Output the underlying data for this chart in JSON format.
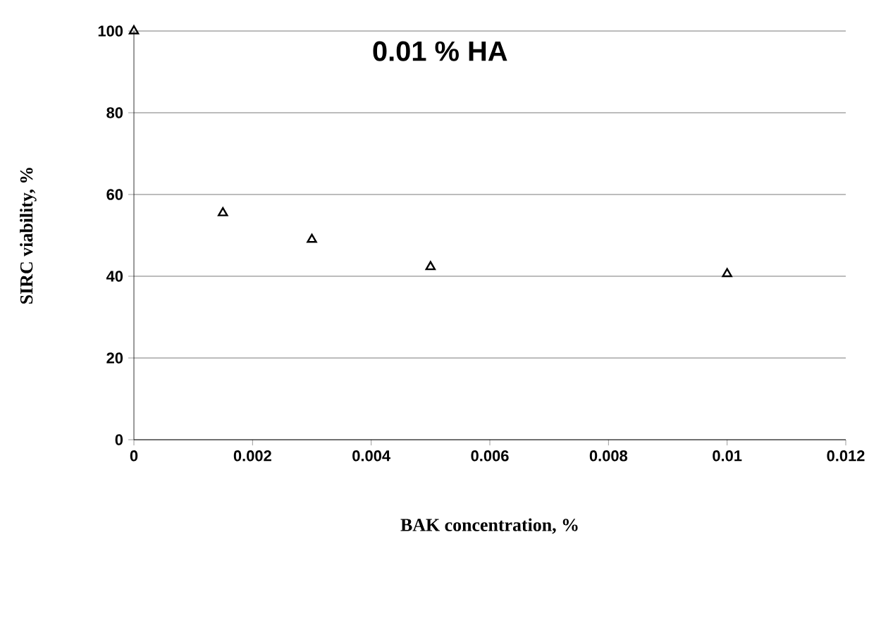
{
  "chart_data": {
    "type": "scatter",
    "title": "0.01 % HA",
    "xlabel": "BAK concentration, %",
    "ylabel": "SIRC viability, %",
    "x": [
      0,
      0.0015,
      0.003,
      0.005,
      0.01
    ],
    "values": [
      100,
      55.5,
      49,
      42.3,
      40.6
    ],
    "color": "#000000",
    "marker": "triangle",
    "xlim": [
      0,
      0.012
    ],
    "xticks": [
      0,
      0.002,
      0.004,
      0.006,
      0.008,
      0.01,
      0.012
    ],
    "ylim": [
      0,
      100
    ],
    "yticks": [
      0,
      20,
      40,
      60,
      80,
      100
    ],
    "grid": "y"
  }
}
